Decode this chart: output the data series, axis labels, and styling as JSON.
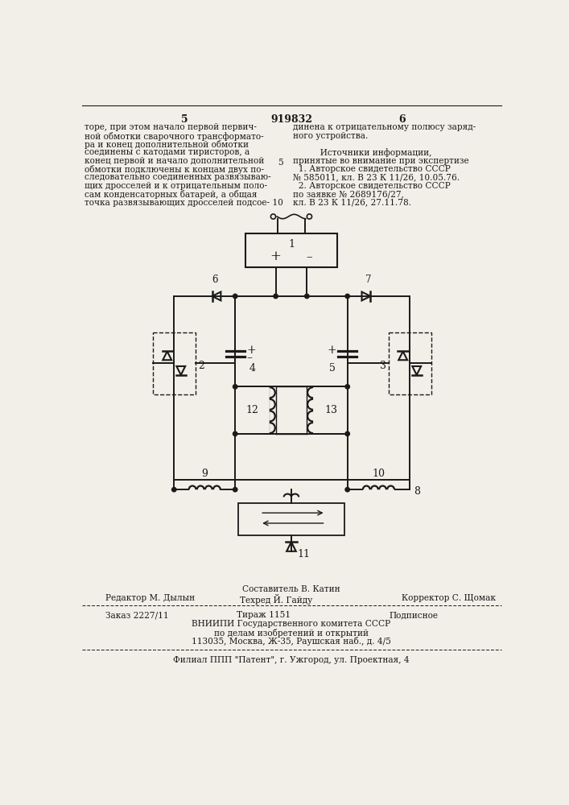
{
  "bg_color": "#f2efe8",
  "text_color": "#1a1a1a",
  "col_page_left": "5",
  "header_num": "919832",
  "col_page_right": "6",
  "col1_text": [
    "торе, при этом начало первой первич-",
    "ной обмотки сварочного трансформато-",
    "ра и конец дополнительной обмотки",
    "соединены с катодами тиристоров, а",
    "конец первой и начало дополнительной",
    "обмотки подключены к концам двух по-",
    "следовательно соединенных развязываю-",
    "щих дросселей и к отрицательным поло-",
    "сам конденсаторных батарей, а общая",
    "точка развязывающих дросселей подсое- 10"
  ],
  "col2_text": [
    "динена к отрицательному полюсу заряд-",
    "ного устройства.",
    "",
    "          Источники информации,",
    "принятые во внимание при экспертизе",
    "  1. Авторское свидетельство СССР",
    "№ 585011, кл. В 23 К 11/26, 10.05.76.",
    "  2. Авторское свидетельство СССР",
    "по заявке № 2689176/27,",
    "кл. В 23 К 11/26, 27.11.78."
  ],
  "footer_composer": "Составитель В. Катин",
  "footer_editor": "Редактор М. Дылын",
  "footer_tech": "Техред Й. Гайду",
  "footer_corrector": "Корректор С. Щомак",
  "footer_order": "Заказ 2227/11",
  "footer_print": "Тираж 1151",
  "footer_subscription": "Подписное",
  "footer_org1": "ВНИИПИ Государственного комитета СССР",
  "footer_org2": "по делам изобретений и открытий",
  "footer_addr": "113035, Москва, Ж-35, Раушская наб., д. 4/5",
  "footer_branch": "Филиал ППП \"Патент\", г. Ужгород, ул. Проектная, 4"
}
